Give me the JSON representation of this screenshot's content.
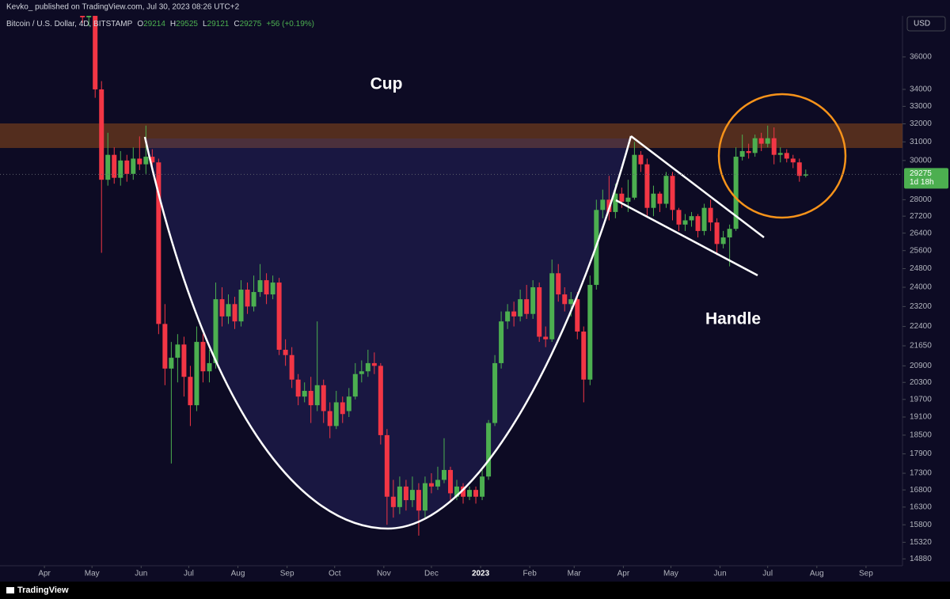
{
  "header": {
    "publisher": "Kevko_ published on TradingView.com, Jul 30, 2023 08:26 UTC+2",
    "symbol": "Bitcoin / U.S. Dollar, 4D, BITSTAMP",
    "ohlc": [
      {
        "label": "O",
        "value": 29214
      },
      {
        "label": "H",
        "value": 29525
      },
      {
        "label": "L",
        "value": 29121
      },
      {
        "label": "C",
        "value": 29275
      }
    ],
    "change": "+56 (+0.19%)",
    "currency": "USD",
    "countdown": "1d 18h",
    "brand": "TradingView"
  },
  "chart_data": {
    "type": "candlestick",
    "log_scale": true,
    "grid": false,
    "up_color": "#4caf50",
    "down_color": "#f23645",
    "annotations": [
      "Cup",
      "Handle"
    ],
    "x": [
      24,
      28,
      32,
      36,
      40,
      44,
      48,
      52,
      56,
      60,
      64,
      68,
      72,
      76,
      80,
      84,
      88,
      92,
      96,
      100,
      104,
      108,
      112,
      116,
      120,
      124,
      128,
      132,
      136,
      140,
      144,
      148,
      152,
      156,
      160,
      164,
      168,
      172,
      176,
      180,
      184,
      188,
      192,
      196,
      200,
      204,
      208,
      212,
      216,
      220,
      224,
      228,
      232,
      236,
      240,
      244,
      248,
      252,
      256,
      260,
      264,
      268,
      272,
      276,
      280,
      284,
      288,
      292,
      296,
      300,
      304,
      308,
      312,
      316,
      320,
      324,
      328,
      332,
      336,
      340,
      344,
      348,
      352,
      356,
      360,
      364,
      368,
      372,
      376,
      380,
      384,
      388,
      392,
      396,
      400,
      404,
      408,
      412,
      416,
      420,
      424,
      428,
      432,
      436,
      440,
      444,
      448,
      452,
      456,
      460,
      464,
      468,
      472,
      476,
      480
    ],
    "open": [
      39500,
      38600,
      39300,
      34000,
      29000,
      30300,
      29100,
      30000,
      29300,
      30100,
      29800,
      30200,
      29900,
      22500,
      20800,
      21200,
      21700,
      20500,
      19500,
      21800,
      20700,
      21000,
      23500,
      22800,
      23300,
      22600,
      23900,
      23200,
      23800,
      24300,
      23700,
      24200,
      21500,
      21300,
      20400,
      19800,
      20000,
      19500,
      20200,
      19300,
      18800,
      19600,
      19300,
      19800,
      20600,
      20700,
      21000,
      20900,
      18500,
      16600,
      16300,
      16900,
      16500,
      16800,
      16200,
      17000,
      16900,
      17100,
      17400,
      16600,
      16900,
      16600,
      16800,
      16600,
      17200,
      18900,
      21000,
      22600,
      23000,
      22800,
      23500,
      22900,
      24000,
      22000,
      21900,
      24600,
      23700,
      23300,
      23500,
      22200,
      20400,
      24100,
      27500,
      28000,
      27400,
      28300,
      27900,
      28100,
      30300,
      29800,
      27600,
      28300,
      27800,
      29200,
      27500,
      26800,
      27000,
      27200,
      26500,
      27600,
      26900,
      25900,
      26200,
      26600,
      30200,
      30500,
      30400,
      31200,
      30900,
      31200,
      30300,
      30400,
      30100,
      29900,
      29214
    ],
    "high": [
      40500,
      40000,
      39800,
      34500,
      31500,
      30700,
      30500,
      30300,
      30700,
      31300,
      31900,
      30600,
      30100,
      23300,
      21800,
      22100,
      22000,
      20900,
      22400,
      22100,
      21500,
      24200,
      24000,
      23700,
      23600,
      24300,
      24200,
      24500,
      25000,
      24600,
      24500,
      24400,
      21900,
      21600,
      20600,
      20300,
      20500,
      22600,
      20400,
      19600,
      20000,
      19800,
      20100,
      21000,
      21100,
      21500,
      21400,
      21000,
      18700,
      17100,
      17200,
      17100,
      17200,
      17000,
      17200,
      17300,
      17500,
      18400,
      17500,
      17100,
      17000,
      16900,
      16900,
      17400,
      19000,
      21300,
      23000,
      23300,
      23400,
      23900,
      24100,
      24300,
      24200,
      22400,
      25200,
      25000,
      24000,
      23800,
      23800,
      22400,
      24500,
      28000,
      28500,
      29200,
      28800,
      28600,
      29000,
      31000,
      30500,
      30100,
      28700,
      28400,
      29400,
      29400,
      27600,
      27300,
      27400,
      27300,
      27800,
      28000,
      27100,
      26500,
      26800,
      30700,
      31400,
      30900,
      31400,
      31500,
      31900,
      31800,
      30700,
      30600,
      30300,
      30100,
      29525
    ],
    "low": [
      38200,
      38000,
      33500,
      25500,
      28700,
      28800,
      28700,
      28900,
      29000,
      29500,
      29300,
      29500,
      22100,
      20200,
      17600,
      20300,
      19800,
      18800,
      19300,
      20300,
      20300,
      20800,
      22400,
      22500,
      22300,
      22400,
      22900,
      23000,
      23600,
      23300,
      23500,
      21300,
      20900,
      20100,
      19500,
      19600,
      18900,
      19300,
      18900,
      18400,
      18700,
      18900,
      19100,
      19700,
      20300,
      20500,
      20600,
      18200,
      15800,
      16000,
      16100,
      16200,
      16300,
      15500,
      16000,
      16700,
      16800,
      17000,
      16500,
      16500,
      16400,
      16500,
      16400,
      16500,
      17100,
      18800,
      20800,
      22300,
      22400,
      22600,
      22700,
      22700,
      21800,
      21600,
      21800,
      23400,
      23000,
      22800,
      21900,
      19600,
      20200,
      23900,
      27100,
      27000,
      27100,
      27600,
      27400,
      28000,
      29400,
      27200,
      27200,
      27400,
      27600,
      27000,
      26500,
      26500,
      26700,
      26200,
      26300,
      26500,
      25400,
      25700,
      24900,
      26500,
      30000,
      30100,
      30200,
      30500,
      30700,
      29800,
      29900,
      29900,
      29600,
      28900,
      29121
    ],
    "close": [
      38600,
      39300,
      34000,
      29000,
      30300,
      29100,
      30000,
      29300,
      30100,
      29800,
      30200,
      29900,
      22500,
      20800,
      21200,
      21700,
      20500,
      19500,
      21800,
      20700,
      21000,
      23500,
      22800,
      23300,
      22600,
      23900,
      23200,
      23800,
      24300,
      23700,
      24200,
      21500,
      21300,
      20400,
      19800,
      20000,
      19500,
      20200,
      19300,
      18800,
      19600,
      19200,
      19800,
      20600,
      20700,
      21000,
      20900,
      18500,
      16600,
      16300,
      16900,
      16500,
      16800,
      16200,
      17000,
      16900,
      17100,
      17400,
      16700,
      16900,
      16600,
      16800,
      16600,
      17200,
      18900,
      21000,
      22600,
      23000,
      22800,
      23500,
      22900,
      24000,
      22000,
      21900,
      24600,
      23700,
      23300,
      23500,
      22200,
      20400,
      24100,
      27500,
      28000,
      27400,
      28300,
      27900,
      28100,
      30300,
      29800,
      27600,
      28300,
      27800,
      29200,
      27500,
      26800,
      27000,
      27200,
      26500,
      27600,
      26900,
      25900,
      26200,
      26600,
      30200,
      30500,
      30400,
      31200,
      30900,
      31200,
      30300,
      30400,
      30100,
      29900,
      29200,
      29275
    ],
    "xlim": [
      -28,
      541
    ],
    "xticks": [
      {
        "value": 0,
        "label": "Apr"
      },
      {
        "value": 30,
        "label": "May"
      },
      {
        "value": 61,
        "label": "Jun"
      },
      {
        "value": 91,
        "label": "Jul"
      },
      {
        "value": 122,
        "label": "Aug"
      },
      {
        "value": 153,
        "label": "Sep"
      },
      {
        "value": 183,
        "label": "Oct"
      },
      {
        "value": 214,
        "label": "Nov"
      },
      {
        "value": 244,
        "label": "Dec"
      },
      {
        "value": 275,
        "label": "2023"
      },
      {
        "value": 306,
        "label": "Feb"
      },
      {
        "value": 334,
        "label": "Mar"
      },
      {
        "value": 365,
        "label": "Apr"
      },
      {
        "value": 395,
        "label": "May"
      },
      {
        "value": 426,
        "label": "Jun"
      },
      {
        "value": 456,
        "label": "Jul"
      },
      {
        "value": 487,
        "label": "Aug"
      },
      {
        "value": 518,
        "label": "Sep"
      }
    ],
    "ylim": [
      14700,
      38700
    ],
    "yticks": [
      14880,
      15320,
      15800,
      16300,
      16800,
      17300,
      17900,
      18500,
      19100,
      19700,
      20300,
      20900,
      21650,
      22400,
      23200,
      24000,
      24800,
      25600,
      26400,
      27200,
      28000,
      30000,
      31000,
      32000,
      33000,
      34000,
      36000
    ]
  }
}
